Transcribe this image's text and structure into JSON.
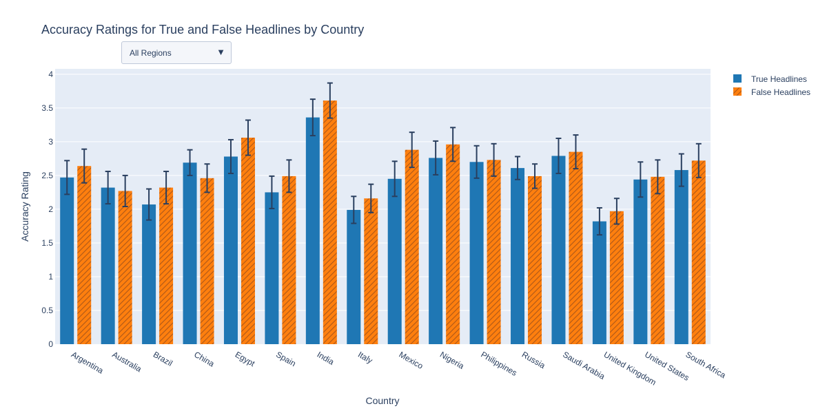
{
  "title": "Accuracy Ratings for True and False Headlines by Country",
  "dropdown": {
    "selected": "All Regions"
  },
  "chart_data": {
    "type": "bar",
    "title": "Accuracy Ratings for True and False Headlines by Country",
    "xlabel": "Country",
    "ylabel": "Accuracy Rating",
    "ylim": [
      0,
      4.08
    ],
    "yticks": [
      0,
      0.5,
      1,
      1.5,
      2,
      2.5,
      3,
      3.5,
      4
    ],
    "grid": true,
    "legend_position": "top-right",
    "error_bars": true,
    "categories": [
      "Argentina",
      "Australia",
      "Brazil",
      "China",
      "Egypt",
      "Spain",
      "India",
      "Italy",
      "Mexico",
      "Nigeria",
      "Philippines",
      "Russia",
      "Saudi Arabia",
      "United Kingdom",
      "United States",
      "South Africa"
    ],
    "series": [
      {
        "name": "True Headlines",
        "color": "#1f77b4",
        "pattern": "solid",
        "values": [
          2.47,
          2.32,
          2.07,
          2.69,
          2.78,
          2.25,
          3.36,
          1.99,
          2.45,
          2.76,
          2.7,
          2.61,
          2.79,
          1.82,
          2.44,
          2.58
        ],
        "error": [
          0.25,
          0.24,
          0.23,
          0.19,
          0.25,
          0.24,
          0.27,
          0.2,
          0.26,
          0.25,
          0.24,
          0.17,
          0.26,
          0.2,
          0.26,
          0.24
        ]
      },
      {
        "name": "False Headlines",
        "color": "#ff7f0e",
        "pattern": "diagonal-hatch",
        "values": [
          2.64,
          2.27,
          2.32,
          2.46,
          3.06,
          2.49,
          3.61,
          2.16,
          2.88,
          2.96,
          2.73,
          2.49,
          2.85,
          1.97,
          2.48,
          2.72
        ],
        "error": [
          0.25,
          0.23,
          0.24,
          0.21,
          0.26,
          0.24,
          0.26,
          0.21,
          0.26,
          0.25,
          0.24,
          0.18,
          0.25,
          0.19,
          0.25,
          0.25
        ]
      }
    ]
  }
}
